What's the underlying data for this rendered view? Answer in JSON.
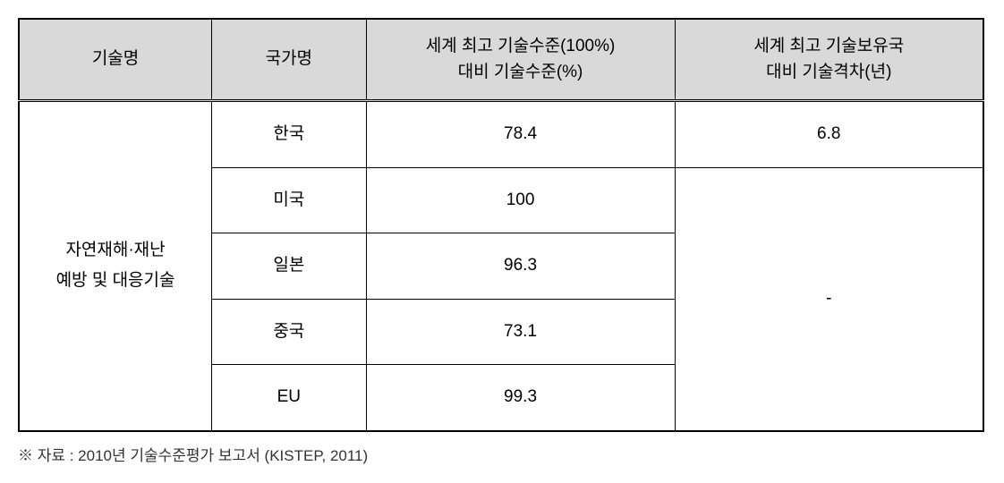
{
  "table": {
    "headers": {
      "tech_name": "기술명",
      "country_name": "국가명",
      "tech_level": "세계 최고 기술수준(100%)\n대비 기술수준(%)",
      "tech_gap": "세계 최고 기술보유국\n대비 기술격차(년)"
    },
    "tech_name_value": "자연재해·재난\n예방 및 대응기술",
    "rows": [
      {
        "country": "한국",
        "level": "78.4",
        "gap": "6.8"
      },
      {
        "country": "미국",
        "level": "100",
        "gap": ""
      },
      {
        "country": "일본",
        "level": "96.3",
        "gap": ""
      },
      {
        "country": "중국",
        "level": "73.1",
        "gap": ""
      },
      {
        "country": "EU",
        "level": "99.3",
        "gap": ""
      }
    ],
    "gap_merged_value": "-"
  },
  "footnote": "※ 자료 : 2010년 기술수준평가 보고서 (KISTEP, 2011)",
  "styling": {
    "header_bg": "#d9d9d9",
    "border_color": "#000000",
    "font_size_body": 19,
    "font_size_footnote": 17
  }
}
